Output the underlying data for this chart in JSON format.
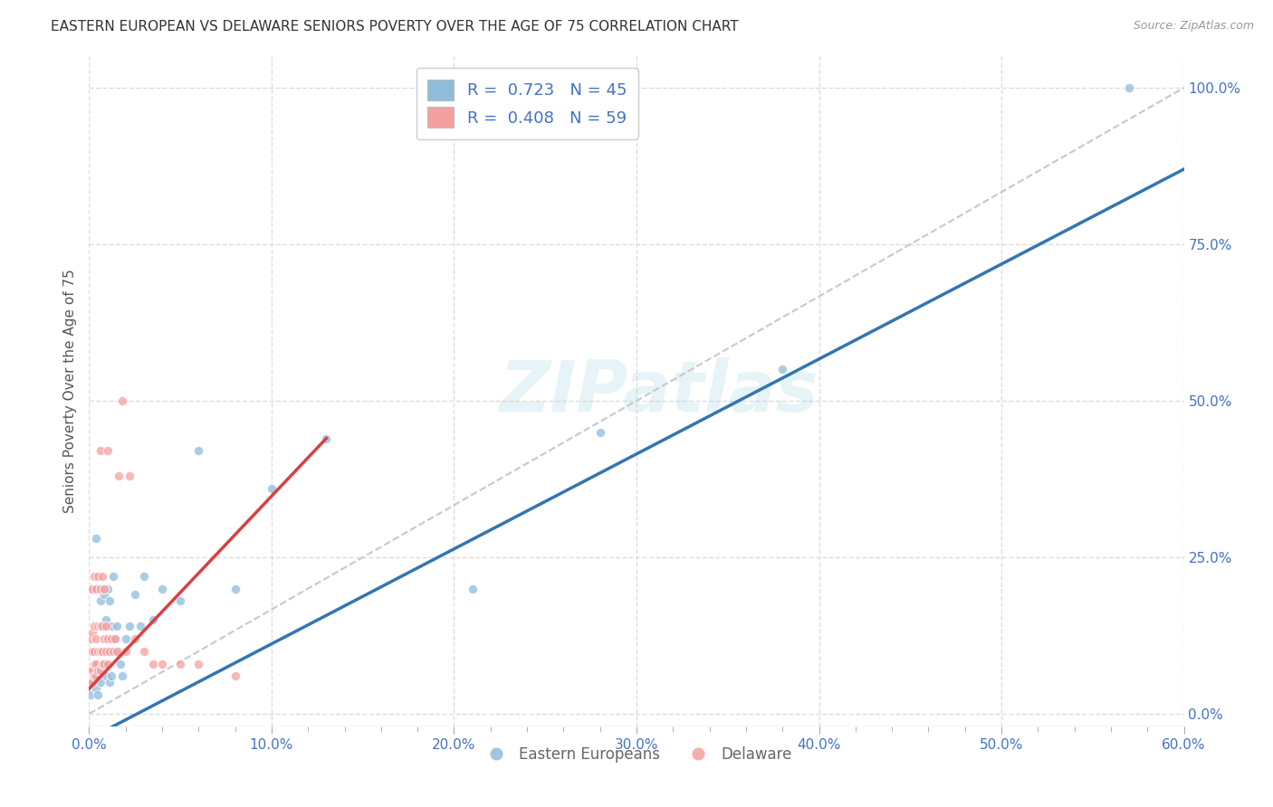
{
  "title": "EASTERN EUROPEAN VS DELAWARE SENIORS POVERTY OVER THE AGE OF 75 CORRELATION CHART",
  "source": "Source: ZipAtlas.com",
  "ylabel": "Seniors Poverty Over the Age of 75",
  "xlim": [
    0,
    0.6
  ],
  "ylim": [
    -0.02,
    1.05
  ],
  "watermark": "ZIPatlas",
  "legend_blue_R": "0.723",
  "legend_blue_N": "45",
  "legend_pink_R": "0.408",
  "legend_pink_N": "59",
  "legend_labels": [
    "Eastern Europeans",
    "Delaware"
  ],
  "blue_color": "#8fbcdb",
  "pink_color": "#f4a0a0",
  "blue_line_color": "#3276b1",
  "pink_line_color": "#d94040",
  "dot_size": 55,
  "title_fontsize": 11,
  "axis_label_fontsize": 11,
  "tick_fontsize": 11,
  "tick_color": "#4472c4",
  "grid_color": "#dddddd",
  "background_color": "#ffffff",
  "blue_x": [
    0.001,
    0.002,
    0.003,
    0.003,
    0.004,
    0.004,
    0.005,
    0.005,
    0.005,
    0.006,
    0.006,
    0.007,
    0.007,
    0.008,
    0.008,
    0.009,
    0.009,
    0.01,
    0.01,
    0.011,
    0.011,
    0.012,
    0.012,
    0.013,
    0.014,
    0.015,
    0.016,
    0.017,
    0.018,
    0.02,
    0.022,
    0.025,
    0.028,
    0.03,
    0.035,
    0.04,
    0.05,
    0.06,
    0.08,
    0.1,
    0.13,
    0.21,
    0.28,
    0.38,
    0.57
  ],
  "blue_y": [
    0.03,
    0.05,
    0.1,
    0.06,
    0.28,
    0.04,
    0.2,
    0.08,
    0.03,
    0.18,
    0.05,
    0.14,
    0.08,
    0.19,
    0.1,
    0.15,
    0.06,
    0.2,
    0.1,
    0.18,
    0.05,
    0.14,
    0.06,
    0.22,
    0.12,
    0.14,
    0.1,
    0.08,
    0.06,
    0.12,
    0.14,
    0.19,
    0.14,
    0.22,
    0.15,
    0.2,
    0.18,
    0.42,
    0.2,
    0.36,
    0.44,
    0.2,
    0.45,
    0.55,
    1.0
  ],
  "pink_x": [
    0.0,
    0.0,
    0.0,
    0.001,
    0.001,
    0.001,
    0.001,
    0.001,
    0.002,
    0.002,
    0.002,
    0.002,
    0.002,
    0.003,
    0.003,
    0.003,
    0.003,
    0.003,
    0.004,
    0.004,
    0.004,
    0.004,
    0.005,
    0.005,
    0.005,
    0.005,
    0.006,
    0.006,
    0.006,
    0.006,
    0.006,
    0.007,
    0.007,
    0.007,
    0.007,
    0.008,
    0.008,
    0.008,
    0.009,
    0.009,
    0.01,
    0.01,
    0.01,
    0.011,
    0.012,
    0.013,
    0.014,
    0.015,
    0.016,
    0.018,
    0.02,
    0.022,
    0.025,
    0.03,
    0.035,
    0.04,
    0.05,
    0.06,
    0.08
  ],
  "pink_y": [
    0.05,
    0.07,
    0.1,
    0.05,
    0.07,
    0.1,
    0.12,
    0.2,
    0.05,
    0.07,
    0.1,
    0.13,
    0.2,
    0.06,
    0.08,
    0.1,
    0.14,
    0.22,
    0.06,
    0.08,
    0.12,
    0.2,
    0.07,
    0.1,
    0.14,
    0.22,
    0.07,
    0.1,
    0.14,
    0.2,
    0.42,
    0.08,
    0.1,
    0.14,
    0.22,
    0.08,
    0.12,
    0.2,
    0.1,
    0.14,
    0.08,
    0.12,
    0.42,
    0.1,
    0.12,
    0.1,
    0.12,
    0.1,
    0.38,
    0.5,
    0.1,
    0.38,
    0.12,
    0.1,
    0.08,
    0.08,
    0.08,
    0.08,
    0.06
  ],
  "blue_line_x": [
    0.0,
    0.6
  ],
  "blue_line_y": [
    -0.04,
    0.87
  ],
  "pink_line_x": [
    0.0,
    0.13
  ],
  "pink_line_y": [
    0.04,
    0.44
  ]
}
